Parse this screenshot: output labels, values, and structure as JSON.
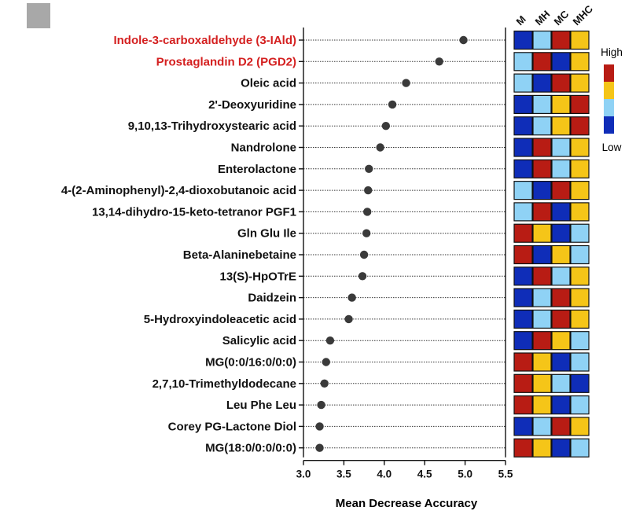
{
  "chart_data": {
    "type": "scatter",
    "xlabel": "Mean Decrease Accuracy",
    "xlim": [
      3.0,
      5.5
    ],
    "xticks": [
      "3.0",
      "3.5",
      "4.0",
      "4.5",
      "5.0",
      "5.5"
    ],
    "rows": [
      {
        "label": "Indole-3-carboxaldehyde (3-IAld)",
        "value": 4.98,
        "highlight": true,
        "heat": [
          "blue",
          "lightblue",
          "red",
          "yellow"
        ]
      },
      {
        "label": "Prostaglandin D2 (PGD2)",
        "value": 4.68,
        "highlight": true,
        "heat": [
          "lightblue",
          "red",
          "blue",
          "yellow"
        ]
      },
      {
        "label": "Oleic acid",
        "value": 4.27,
        "highlight": false,
        "heat": [
          "lightblue",
          "blue",
          "red",
          "yellow"
        ]
      },
      {
        "label": "2'-Deoxyuridine",
        "value": 4.1,
        "highlight": false,
        "heat": [
          "blue",
          "lightblue",
          "yellow",
          "red"
        ]
      },
      {
        "label": "9,10,13-Trihydroxystearic acid",
        "value": 4.02,
        "highlight": false,
        "heat": [
          "blue",
          "lightblue",
          "yellow",
          "red"
        ]
      },
      {
        "label": "Nandrolone",
        "value": 3.95,
        "highlight": false,
        "heat": [
          "blue",
          "red",
          "lightblue",
          "yellow"
        ]
      },
      {
        "label": "Enterolactone",
        "value": 3.81,
        "highlight": false,
        "heat": [
          "blue",
          "red",
          "lightblue",
          "yellow"
        ]
      },
      {
        "label": "4-(2-Aminophenyl)-2,4-dioxobutanoic acid",
        "value": 3.8,
        "highlight": false,
        "heat": [
          "lightblue",
          "blue",
          "red",
          "yellow"
        ]
      },
      {
        "label": "13,14-dihydro-15-keto-tetranor PGF1",
        "value": 3.79,
        "highlight": false,
        "heat": [
          "lightblue",
          "red",
          "blue",
          "yellow"
        ]
      },
      {
        "label": "Gln Glu Ile",
        "value": 3.78,
        "highlight": false,
        "heat": [
          "red",
          "yellow",
          "blue",
          "lightblue"
        ]
      },
      {
        "label": "Beta-Alaninebetaine",
        "value": 3.75,
        "highlight": false,
        "heat": [
          "red",
          "blue",
          "yellow",
          "lightblue"
        ]
      },
      {
        "label": "13(S)-HpOTrE",
        "value": 3.73,
        "highlight": false,
        "heat": [
          "blue",
          "red",
          "lightblue",
          "yellow"
        ]
      },
      {
        "label": "Daidzein",
        "value": 3.6,
        "highlight": false,
        "heat": [
          "blue",
          "lightblue",
          "red",
          "yellow"
        ]
      },
      {
        "label": "5-Hydroxyindoleacetic acid",
        "value": 3.56,
        "highlight": false,
        "heat": [
          "blue",
          "lightblue",
          "red",
          "yellow"
        ]
      },
      {
        "label": "Salicylic acid",
        "value": 3.33,
        "highlight": false,
        "heat": [
          "blue",
          "red",
          "yellow",
          "lightblue"
        ]
      },
      {
        "label": "MG(0:0/16:0/0:0)",
        "value": 3.28,
        "highlight": false,
        "heat": [
          "red",
          "yellow",
          "blue",
          "lightblue"
        ]
      },
      {
        "label": "2,7,10-Trimethyldodecane",
        "value": 3.26,
        "highlight": false,
        "heat": [
          "red",
          "yellow",
          "lightblue",
          "blue"
        ]
      },
      {
        "label": "Leu Phe Leu",
        "value": 3.22,
        "highlight": false,
        "heat": [
          "red",
          "yellow",
          "blue",
          "lightblue"
        ]
      },
      {
        "label": "Corey PG-Lactone Diol",
        "value": 3.2,
        "highlight": false,
        "heat": [
          "blue",
          "lightblue",
          "red",
          "yellow"
        ]
      },
      {
        "label": "MG(18:0/0:0/0:0)",
        "value": 3.2,
        "highlight": false,
        "heat": [
          "red",
          "yellow",
          "blue",
          "lightblue"
        ]
      }
    ],
    "heatmap_columns": [
      "M",
      "MH",
      "MC",
      "MHC"
    ],
    "legend": {
      "high": "High",
      "low": "Low"
    },
    "colors": {
      "highlight_text": "#d42020",
      "text": "#111111",
      "dot": "#3a3a3a",
      "red": "#b81c14",
      "yellow": "#f5c518",
      "lightblue": "#8fd2f5",
      "blue": "#0f2db8"
    }
  }
}
